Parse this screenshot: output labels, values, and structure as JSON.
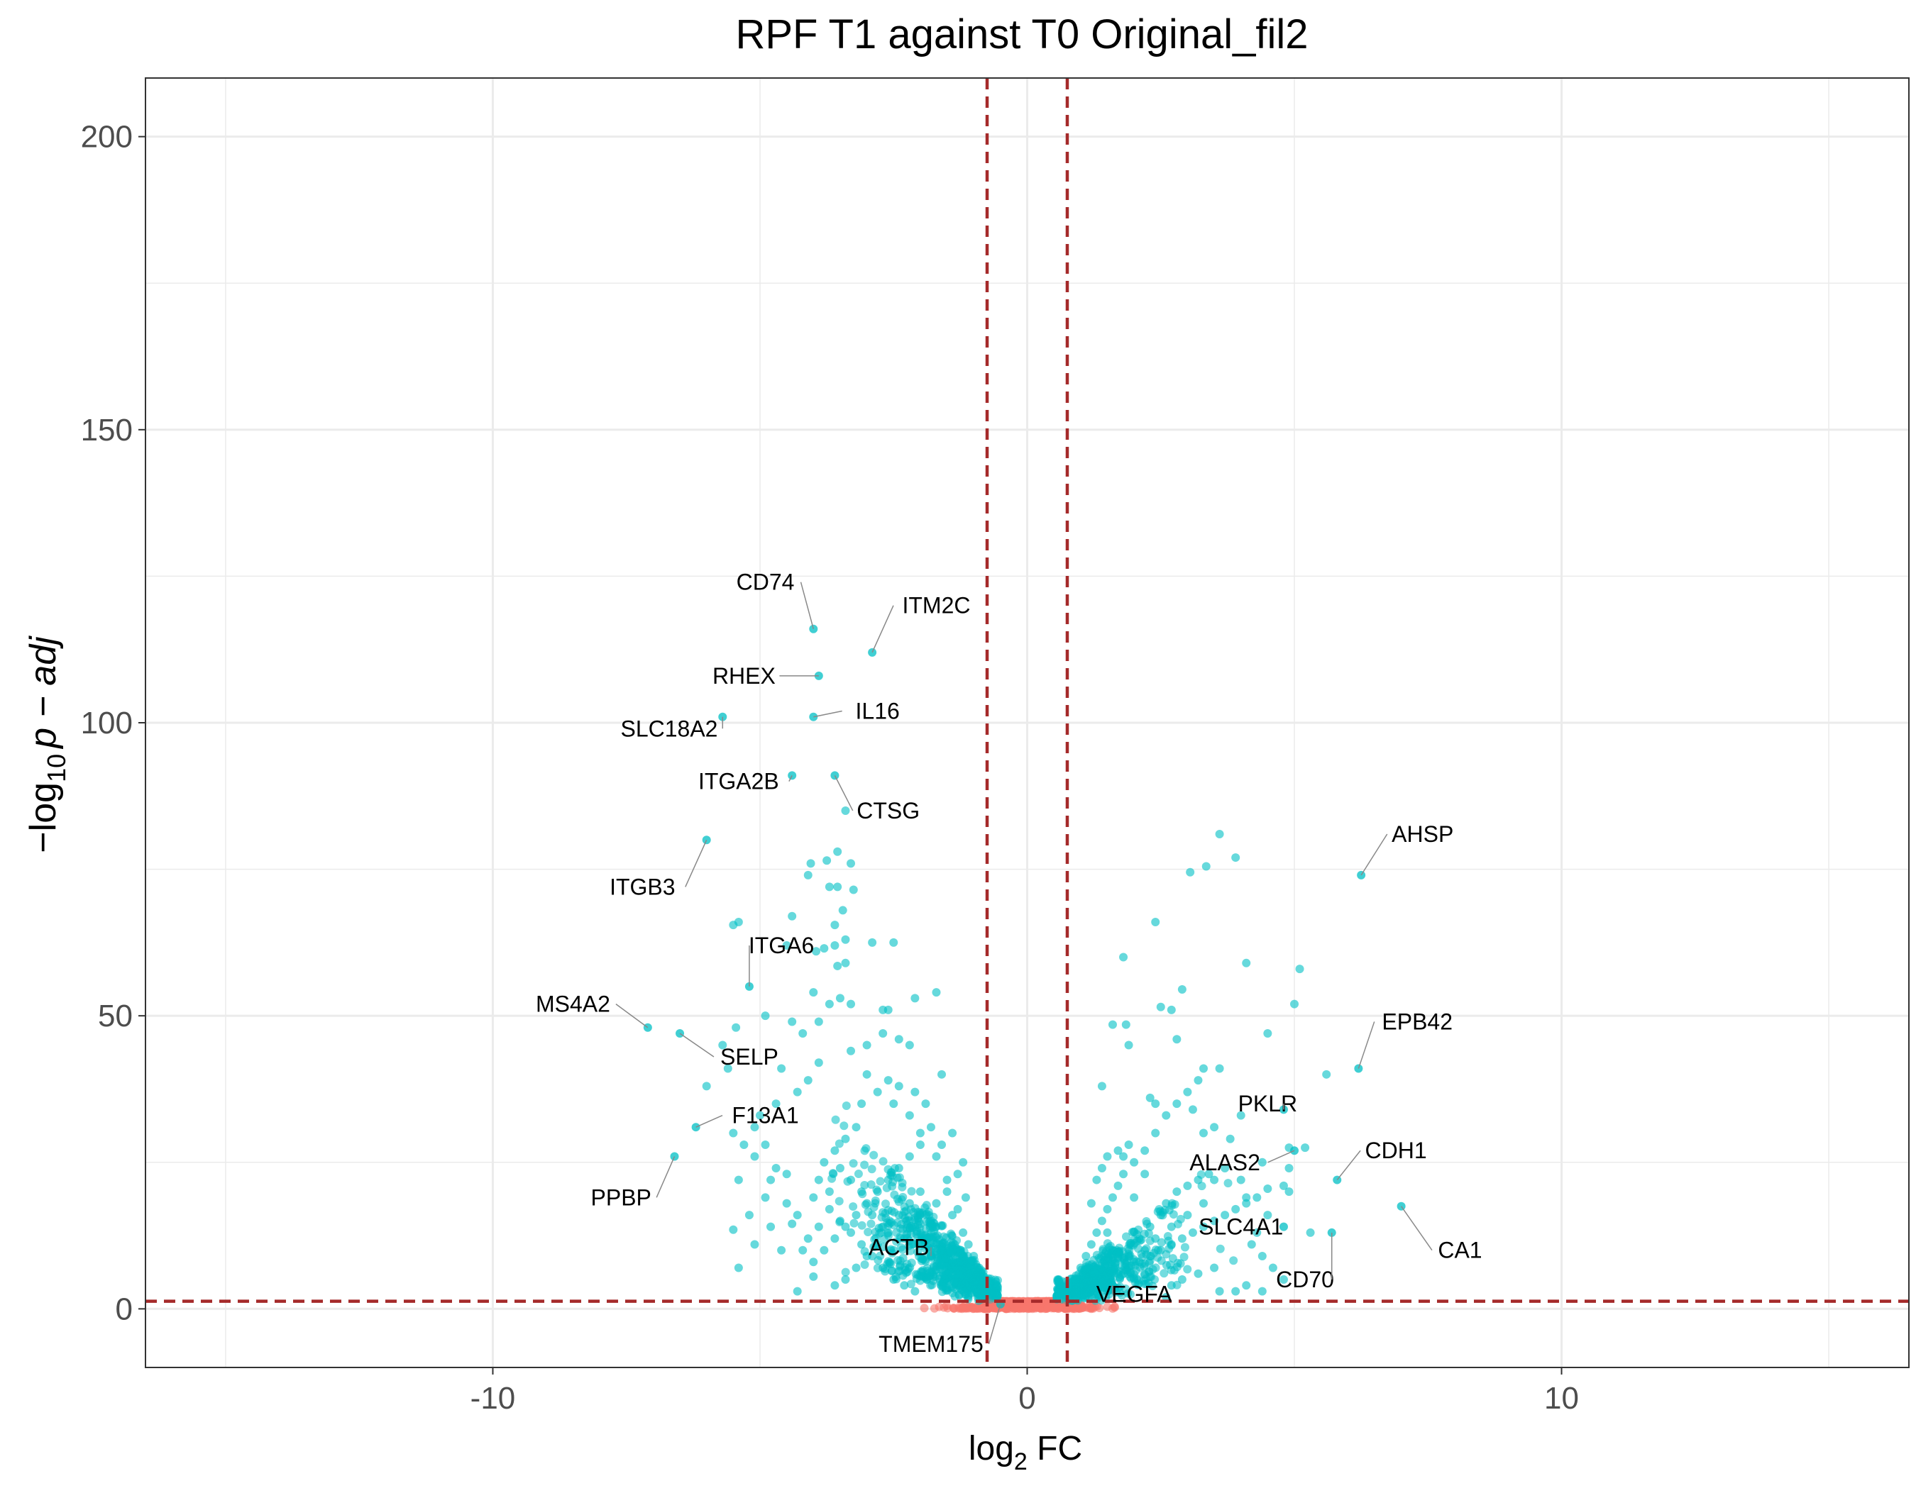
{
  "chart_data": {
    "type": "scatter",
    "title": "RPF T1 against T0 Original_fil2",
    "xlabel": {
      "main": "log",
      "sub": "2",
      "tail": " FC"
    },
    "ylabel": {
      "prefix": "−log",
      "sub": "10",
      "tail": "p − adj"
    },
    "xlim": [
      -16.5,
      16.5
    ],
    "ylim": [
      -10,
      210
    ],
    "x_ticks": [
      {
        "value": -10,
        "label": "-10"
      },
      {
        "value": 0,
        "label": "0"
      },
      {
        "value": 10,
        "label": "10"
      }
    ],
    "y_ticks": [
      {
        "value": 0,
        "label": "0"
      },
      {
        "value": 50,
        "label": "50"
      },
      {
        "value": 100,
        "label": "100"
      },
      {
        "value": 150,
        "label": "150"
      },
      {
        "value": 200,
        "label": "200"
      }
    ],
    "x_minor": [
      -15,
      -5,
      5,
      15
    ],
    "y_minor": [
      25,
      75,
      125,
      175
    ],
    "grid": true,
    "thresholds": {
      "log2fc": [
        -0.75,
        0.75
      ],
      "neg_log10_padj": 1.3
    },
    "colors": {
      "significant": "#00BFC4",
      "not_significant": "#F8766D",
      "threshold_line": "#A52A2A",
      "grid": "#EBEBEB",
      "panel_border": "#333333",
      "tick_text": "#4D4D4D"
    },
    "labeled_points": [
      {
        "gene": "CD74",
        "x": -4.0,
        "y": 116,
        "lx": -4.9,
        "ly": 124
      },
      {
        "gene": "ITM2C",
        "x": -2.9,
        "y": 112,
        "lx": -1.7,
        "ly": 120
      },
      {
        "gene": "RHEX",
        "x": -3.9,
        "y": 108,
        "lx": -5.3,
        "ly": 108
      },
      {
        "gene": "SLC18A2",
        "x": -5.7,
        "y": 101,
        "lx": -6.7,
        "ly": 99
      },
      {
        "gene": "IL16",
        "x": -4.0,
        "y": 101,
        "lx": -2.8,
        "ly": 102
      },
      {
        "gene": "ITGA2B",
        "x": -4.4,
        "y": 91,
        "lx": -5.4,
        "ly": 90
      },
      {
        "gene": "CTSG",
        "x": -3.6,
        "y": 91,
        "lx": -2.6,
        "ly": 85
      },
      {
        "gene": "AHSP",
        "x": 6.25,
        "y": 74,
        "lx": 7.4,
        "ly": 81
      },
      {
        "gene": "ITGB3",
        "x": -6.0,
        "y": 80,
        "lx": -7.2,
        "ly": 72
      },
      {
        "gene": "ITGA6",
        "x": -5.2,
        "y": 55,
        "lx": -4.6,
        "ly": 62
      },
      {
        "gene": "MS4A2",
        "x": -7.1,
        "y": 48,
        "lx": -8.5,
        "ly": 52
      },
      {
        "gene": "EPB42",
        "x": 6.2,
        "y": 41,
        "lx": 7.3,
        "ly": 49
      },
      {
        "gene": "SELP",
        "x": -6.5,
        "y": 47,
        "lx": -5.2,
        "ly": 43
      },
      {
        "gene": "PKLR",
        "x": 4.8,
        "y": 34,
        "lx": 4.5,
        "ly": 35
      },
      {
        "gene": "F13A1",
        "x": -6.2,
        "y": 31,
        "lx": -4.9,
        "ly": 33
      },
      {
        "gene": "CDH1",
        "x": 5.8,
        "y": 22,
        "lx": 6.9,
        "ly": 27
      },
      {
        "gene": "ALAS2",
        "x": 5.0,
        "y": 27,
        "lx": 3.7,
        "ly": 25
      },
      {
        "gene": "PPBP",
        "x": -6.6,
        "y": 26,
        "lx": -7.6,
        "ly": 19
      },
      {
        "gene": "SLC4A1",
        "x": 4.8,
        "y": 14,
        "lx": 4.0,
        "ly": 14
      },
      {
        "gene": "CA1",
        "x": 7.0,
        "y": 17.5,
        "lx": 8.1,
        "ly": 10
      },
      {
        "gene": "ACTB",
        "x": -1.8,
        "y": 9,
        "lx": -2.4,
        "ly": 10.5
      },
      {
        "gene": "CD70",
        "x": 5.7,
        "y": 13,
        "lx": 5.2,
        "ly": 5
      },
      {
        "gene": "VEGFA",
        "x": 1.6,
        "y": 4,
        "lx": 2.0,
        "ly": 2.5
      },
      {
        "gene": "TMEM175",
        "x": -0.5,
        "y": 0.8,
        "lx": -1.8,
        "ly": -6
      }
    ],
    "points": [
      [
        -3.4,
        85
      ],
      [
        -3.55,
        78
      ],
      [
        -3.3,
        76
      ],
      [
        -3.7,
        72
      ],
      [
        -4.05,
        76
      ],
      [
        -3.75,
        76.5
      ],
      [
        -4.4,
        67
      ],
      [
        -4.1,
        74
      ],
      [
        -3.55,
        72
      ],
      [
        -3.25,
        71.5
      ],
      [
        -3.45,
        68
      ],
      [
        -3.6,
        65.5
      ],
      [
        -3.4,
        63
      ],
      [
        -3.8,
        61.5
      ],
      [
        -3.6,
        62
      ],
      [
        -2.9,
        62.5
      ],
      [
        -2.5,
        62.5
      ],
      [
        -4.5,
        62
      ],
      [
        -5.4,
        66
      ],
      [
        -5.5,
        65.5
      ],
      [
        -3.4,
        59
      ],
      [
        -3.55,
        58.5
      ],
      [
        -3.95,
        61
      ],
      [
        -4.0,
        54
      ],
      [
        -3.7,
        52
      ],
      [
        -3.5,
        53
      ],
      [
        -3.3,
        52
      ],
      [
        -2.7,
        51
      ],
      [
        -2.6,
        51
      ],
      [
        -1.7,
        54
      ],
      [
        -2.1,
        53
      ],
      [
        -4.9,
        50
      ],
      [
        -4.4,
        49
      ],
      [
        -5.45,
        48
      ],
      [
        -5.7,
        45
      ],
      [
        -4.6,
        41
      ],
      [
        -3.9,
        42
      ],
      [
        -3.3,
        44
      ],
      [
        -3.0,
        45
      ],
      [
        -2.7,
        47
      ],
      [
        -2.4,
        46
      ],
      [
        -2.2,
        45
      ],
      [
        -3.9,
        49
      ],
      [
        -4.2,
        47
      ],
      [
        -3.0,
        40
      ],
      [
        -2.6,
        39
      ],
      [
        -2.4,
        38
      ],
      [
        -2.1,
        37
      ],
      [
        -1.9,
        35
      ],
      [
        -1.6,
        40
      ],
      [
        -5.6,
        41
      ],
      [
        -6.0,
        38
      ],
      [
        -5.0,
        33
      ],
      [
        -4.7,
        35
      ],
      [
        -4.3,
        37
      ],
      [
        -4.1,
        39
      ],
      [
        -5.3,
        28
      ],
      [
        -5.5,
        30
      ],
      [
        -5.1,
        26
      ],
      [
        -5.4,
        22
      ],
      [
        -4.8,
        22
      ],
      [
        -4.5,
        23
      ],
      [
        -4.9,
        19
      ],
      [
        -5.2,
        16
      ],
      [
        -4.8,
        14
      ],
      [
        -5.5,
        13.5
      ],
      [
        -5.1,
        11
      ],
      [
        -5.4,
        7
      ],
      [
        -4.4,
        14.5
      ],
      [
        -4.6,
        10
      ],
      [
        -4.3,
        3
      ],
      [
        -4.0,
        5.5
      ],
      [
        -4.2,
        10
      ],
      [
        -1.4,
        16
      ],
      [
        -1.2,
        13
      ],
      [
        -1.1,
        11
      ],
      [
        -1.0,
        9
      ],
      [
        -0.9,
        7
      ],
      [
        -1.0,
        4.5
      ],
      [
        -1.15,
        19
      ],
      [
        -1.3,
        17
      ],
      [
        -1.5,
        22
      ],
      [
        -1.7,
        26
      ],
      [
        -2.0,
        30
      ],
      [
        -2.2,
        33
      ],
      [
        -2.5,
        35
      ],
      [
        -2.8,
        37
      ],
      [
        -3.1,
        35
      ],
      [
        -3.2,
        31
      ],
      [
        -3.4,
        29
      ],
      [
        -3.6,
        27
      ],
      [
        -3.8,
        25
      ],
      [
        -3.9,
        22
      ],
      [
        -4.0,
        19
      ],
      [
        -3.7,
        17
      ],
      [
        -3.5,
        15
      ],
      [
        -3.3,
        13
      ],
      [
        -3.1,
        11
      ],
      [
        -2.9,
        9
      ],
      [
        -2.7,
        7
      ],
      [
        -2.5,
        5
      ],
      [
        -2.3,
        4
      ],
      [
        -2.1,
        3
      ],
      [
        1.1,
        3
      ],
      [
        1.3,
        4
      ],
      [
        1.5,
        5
      ],
      [
        1.7,
        6
      ],
      [
        1.9,
        7
      ],
      [
        2.1,
        8
      ],
      [
        2.3,
        9
      ],
      [
        2.5,
        10
      ],
      [
        2.7,
        11
      ],
      [
        2.9,
        12
      ],
      [
        3.1,
        13
      ],
      [
        3.3,
        14
      ],
      [
        3.5,
        15
      ],
      [
        3.7,
        16
      ],
      [
        3.9,
        17
      ],
      [
        4.1,
        18
      ],
      [
        4.3,
        19
      ],
      [
        0.9,
        5
      ],
      [
        1.0,
        7
      ],
      [
        1.1,
        9
      ],
      [
        1.2,
        11
      ],
      [
        1.3,
        13
      ],
      [
        1.4,
        15
      ],
      [
        1.5,
        17
      ],
      [
        1.6,
        19
      ],
      [
        1.7,
        21
      ],
      [
        1.8,
        23
      ],
      [
        2.0,
        25
      ],
      [
        2.2,
        27
      ],
      [
        2.4,
        30
      ],
      [
        2.6,
        33
      ],
      [
        2.8,
        35
      ],
      [
        3.0,
        37
      ],
      [
        3.2,
        39
      ],
      [
        3.3,
        41
      ],
      [
        3.6,
        81
      ],
      [
        3.9,
        77
      ],
      [
        3.35,
        75.5
      ],
      [
        3.05,
        74.5
      ],
      [
        2.4,
        66
      ],
      [
        1.8,
        60
      ],
      [
        4.1,
        59
      ],
      [
        5.1,
        58
      ],
      [
        2.9,
        54.5
      ],
      [
        5.0,
        52
      ],
      [
        2.7,
        51
      ],
      [
        2.5,
        51.5
      ],
      [
        1.6,
        48.5
      ],
      [
        1.85,
        48.5
      ],
      [
        1.9,
        45
      ],
      [
        2.8,
        46
      ],
      [
        4.5,
        47
      ],
      [
        3.6,
        41
      ],
      [
        5.6,
        40
      ],
      [
        1.4,
        38
      ],
      [
        2.3,
        36
      ],
      [
        2.4,
        35
      ],
      [
        3.1,
        34
      ],
      [
        3.5,
        31
      ],
      [
        4.0,
        33
      ],
      [
        3.3,
        30
      ],
      [
        3.8,
        29
      ],
      [
        4.9,
        27.5
      ],
      [
        4.4,
        25
      ],
      [
        4.9,
        24
      ],
      [
        5.2,
        27.5
      ],
      [
        4.8,
        21
      ],
      [
        4.9,
        20
      ],
      [
        4.5,
        20.5
      ],
      [
        3.5,
        22
      ],
      [
        3.7,
        24
      ],
      [
        4.0,
        22
      ],
      [
        4.1,
        19
      ],
      [
        4.5,
        16
      ],
      [
        5.3,
        13
      ],
      [
        4.3,
        13
      ],
      [
        4.2,
        11
      ],
      [
        4.4,
        9
      ],
      [
        4.6,
        7
      ],
      [
        4.8,
        5
      ],
      [
        4.1,
        4
      ],
      [
        4.4,
        3
      ],
      [
        2.6,
        2
      ],
      [
        3.6,
        3
      ],
      [
        3.9,
        3
      ],
      [
        3.5,
        7
      ],
      [
        3.2,
        6
      ],
      [
        2.9,
        5
      ],
      [
        2.7,
        4
      ],
      [
        1.9,
        28
      ],
      [
        1.7,
        27
      ],
      [
        2.0,
        19
      ],
      [
        1.3,
        22
      ],
      [
        1.5,
        26
      ],
      [
        2.2,
        23
      ],
      [
        1.4,
        24
      ],
      [
        1.8,
        26
      ],
      [
        1.2,
        18
      ],
      [
        1.5,
        13
      ],
      [
        1.6,
        10
      ],
      [
        1.9,
        9
      ],
      [
        2.1,
        12
      ],
      [
        2.3,
        14
      ],
      [
        2.5,
        16
      ],
      [
        2.6,
        18
      ],
      [
        2.8,
        20
      ],
      [
        3.0,
        21
      ],
      [
        3.2,
        22
      ],
      [
        3.4,
        23
      ],
      [
        3.0,
        16
      ],
      [
        3.3,
        18
      ],
      [
        2.7,
        14
      ],
      [
        2.4,
        12
      ],
      [
        2.2,
        10
      ],
      [
        2.0,
        8
      ],
      [
        1.8,
        6
      ],
      [
        1.6,
        4
      ],
      [
        -1.4,
        30
      ],
      [
        -1.6,
        28
      ],
      [
        -1.8,
        31
      ],
      [
        -2.0,
        28
      ],
      [
        -2.2,
        26
      ],
      [
        -2.4,
        24
      ],
      [
        -2.6,
        22
      ],
      [
        -2.8,
        20
      ],
      [
        -3.0,
        18
      ],
      [
        -3.2,
        16
      ],
      [
        -3.4,
        14
      ],
      [
        -3.6,
        12
      ],
      [
        -3.8,
        10
      ],
      [
        -4.0,
        8
      ],
      [
        -1.2,
        25
      ],
      [
        -1.3,
        23
      ],
      [
        -1.5,
        20
      ],
      [
        -1.7,
        18
      ],
      [
        -1.9,
        16
      ],
      [
        -2.1,
        14
      ],
      [
        -2.3,
        12
      ],
      [
        -2.5,
        10
      ],
      [
        -2.7,
        14
      ],
      [
        -2.9,
        16
      ],
      [
        -3.1,
        20
      ],
      [
        -3.3,
        22
      ],
      [
        -3.5,
        24
      ],
      [
        -3.7,
        20
      ],
      [
        -3.9,
        14
      ],
      [
        -4.1,
        12
      ],
      [
        -4.3,
        16
      ],
      [
        -4.5,
        18
      ],
      [
        -4.7,
        24
      ],
      [
        -4.9,
        28
      ],
      [
        -5.1,
        31
      ],
      [
        -2.0,
        20
      ],
      [
        -2.2,
        18
      ],
      [
        -2.4,
        16
      ],
      [
        -2.6,
        13
      ],
      [
        -2.8,
        11
      ],
      [
        -3.0,
        9
      ],
      [
        -3.2,
        7
      ],
      [
        -3.4,
        5
      ],
      [
        -3.6,
        4
      ],
      [
        -1.8,
        12
      ],
      [
        -1.6,
        10
      ],
      [
        -1.4,
        8
      ],
      [
        -1.2,
        6
      ],
      [
        -1.1,
        5
      ],
      [
        -0.95,
        3
      ],
      [
        0.95,
        3
      ],
      [
        1.05,
        4.5
      ],
      [
        1.15,
        6
      ]
    ],
    "cloud": {
      "n": 1400,
      "neg_center": -2.1,
      "neg_spread": 1.6,
      "pos_center": 2.0,
      "pos_spread": 1.5,
      "neg_yscale": 11,
      "pos_yscale": 8,
      "ns_n": 520
    }
  }
}
